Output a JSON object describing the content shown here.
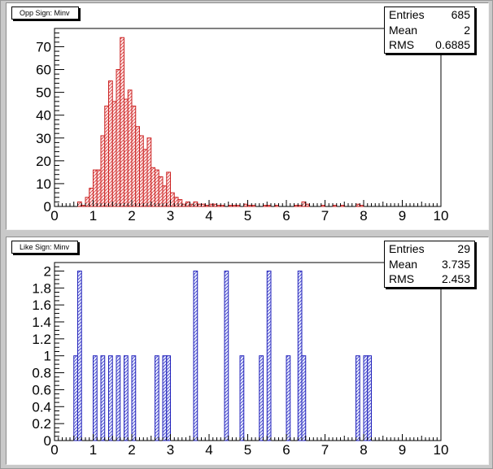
{
  "chart_data": [
    {
      "type": "bar",
      "title": "Opp Sign: Minv",
      "stats": {
        "entries_label": "Entries",
        "entries": "685",
        "mean_label": "Mean",
        "mean": "2",
        "rms_label": "RMS",
        "rms": "0.6885"
      },
      "xlim": [
        0,
        10
      ],
      "ylim": [
        0,
        78
      ],
      "x_ticks": [
        "0",
        "1",
        "2",
        "3",
        "4",
        "5",
        "6",
        "7",
        "8",
        "9",
        "10"
      ],
      "y_ticks": [
        0,
        10,
        20,
        30,
        40,
        50,
        60,
        70
      ],
      "y_tick_labels": [
        "0",
        "10",
        "20",
        "30",
        "40",
        "50",
        "60",
        "70"
      ],
      "bin_width": 0.1,
      "bins": [
        [
          0.6,
          2
        ],
        [
          0.7,
          0.5
        ],
        [
          0.8,
          4
        ],
        [
          0.9,
          8
        ],
        [
          1.0,
          16
        ],
        [
          1.1,
          16
        ],
        [
          1.2,
          31
        ],
        [
          1.3,
          44
        ],
        [
          1.4,
          55
        ],
        [
          1.5,
          46
        ],
        [
          1.6,
          60
        ],
        [
          1.7,
          74
        ],
        [
          1.8,
          47
        ],
        [
          1.9,
          51
        ],
        [
          2.0,
          44
        ],
        [
          2.1,
          35
        ],
        [
          2.2,
          31
        ],
        [
          2.3,
          25
        ],
        [
          2.4,
          30
        ],
        [
          2.5,
          17
        ],
        [
          2.6,
          16
        ],
        [
          2.7,
          13
        ],
        [
          2.8,
          9
        ],
        [
          2.9,
          15
        ],
        [
          3.0,
          6
        ],
        [
          3.1,
          4
        ],
        [
          3.2,
          3
        ],
        [
          3.3,
          1
        ],
        [
          3.4,
          2
        ],
        [
          3.5,
          1
        ],
        [
          3.6,
          2
        ],
        [
          3.7,
          1
        ],
        [
          3.8,
          1
        ],
        [
          3.9,
          0.5
        ],
        [
          4.0,
          1
        ],
        [
          4.1,
          1
        ],
        [
          4.2,
          0.5
        ],
        [
          4.3,
          0.5
        ],
        [
          4.5,
          0.5
        ],
        [
          4.6,
          0.5
        ],
        [
          4.7,
          0.5
        ],
        [
          4.9,
          1
        ],
        [
          5.0,
          0.5
        ],
        [
          5.1,
          0.5
        ],
        [
          5.4,
          0.5
        ],
        [
          5.5,
          0.5
        ],
        [
          5.7,
          0.5
        ],
        [
          6.2,
          0.5
        ],
        [
          6.3,
          0.5
        ],
        [
          6.4,
          2
        ],
        [
          6.5,
          1
        ],
        [
          6.9,
          0.5
        ],
        [
          7.2,
          0.5
        ],
        [
          7.4,
          0.5
        ],
        [
          7.8,
          1
        ],
        [
          7.9,
          0.5
        ]
      ],
      "colors": {
        "line": "#cc2222",
        "fill_bg": "#fde4e4"
      }
    },
    {
      "type": "bar",
      "title": "Like Sign: Minv",
      "stats": {
        "entries_label": "Entries",
        "entries": "29",
        "mean_label": "Mean",
        "mean": "3.735",
        "rms_label": "RMS",
        "rms": "2.453"
      },
      "xlim": [
        0,
        10
      ],
      "ylim": [
        0,
        2.1
      ],
      "x_ticks": [
        "0",
        "1",
        "2",
        "3",
        "4",
        "5",
        "6",
        "7",
        "8",
        "9",
        "10"
      ],
      "y_ticks": [
        0,
        0.2,
        0.4,
        0.6,
        0.8,
        1,
        1.2,
        1.4,
        1.6,
        1.8,
        2
      ],
      "y_tick_labels": [
        "0",
        "0.2",
        "0.4",
        "0.6",
        "0.8",
        "1",
        "1.2",
        "1.4",
        "1.6",
        "1.8",
        "2"
      ],
      "bin_width": 0.1,
      "bins": [
        [
          0.5,
          1
        ],
        [
          0.6,
          2
        ],
        [
          1.0,
          1
        ],
        [
          1.2,
          1
        ],
        [
          1.4,
          1
        ],
        [
          1.6,
          1
        ],
        [
          1.8,
          1
        ],
        [
          2.0,
          1
        ],
        [
          2.6,
          1
        ],
        [
          2.8,
          1
        ],
        [
          2.9,
          1
        ],
        [
          3.6,
          2
        ],
        [
          4.4,
          2
        ],
        [
          4.8,
          1
        ],
        [
          5.3,
          1
        ],
        [
          5.5,
          2
        ],
        [
          6.0,
          1
        ],
        [
          6.3,
          2
        ],
        [
          6.4,
          1
        ],
        [
          7.8,
          1
        ],
        [
          8.0,
          1
        ],
        [
          8.1,
          1
        ]
      ],
      "colors": {
        "line": "#2222bb",
        "fill_bg": "#e4e8fd"
      }
    }
  ]
}
